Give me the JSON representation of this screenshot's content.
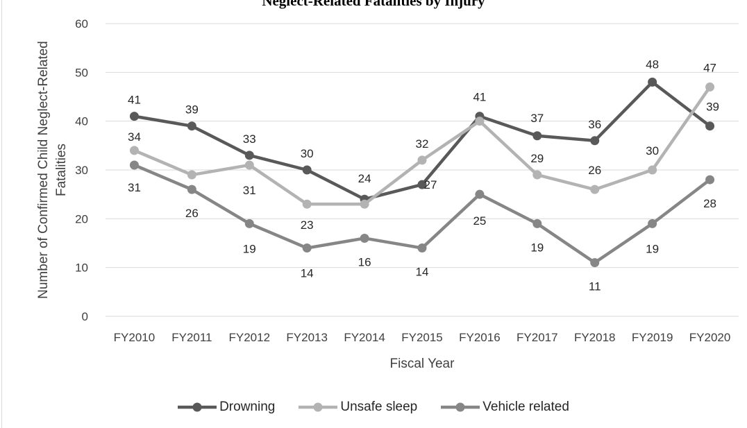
{
  "chart_data": {
    "type": "line",
    "title": "Neglect-Related Fatalities by Injury",
    "xlabel": "Fiscal Year",
    "ylabel": "Number of Confirmed Child Neglect-Related Fatalities",
    "ylim": [
      0,
      60
    ],
    "yticks": [
      0,
      10,
      20,
      30,
      40,
      50,
      60
    ],
    "grid": true,
    "legend_position": "bottom",
    "categories": [
      "FY2010",
      "FY2011",
      "FY2012",
      "FY2013",
      "FY2014",
      "FY2015",
      "FY2016",
      "FY2017",
      "FY2018",
      "FY2019",
      "FY2020"
    ],
    "series": [
      {
        "name": "Drowning",
        "color": "#595959",
        "values": [
          41,
          39,
          33,
          30,
          24,
          27,
          41,
          37,
          36,
          48,
          39
        ]
      },
      {
        "name": "Unsafe sleep",
        "color": "#b3b3b3",
        "values": [
          34,
          29,
          31,
          23,
          23,
          32,
          40,
          29,
          26,
          30,
          47
        ]
      },
      {
        "name": "Vehicle related",
        "color": "#868686",
        "values": [
          31,
          26,
          19,
          14,
          16,
          14,
          25,
          19,
          11,
          19,
          28
        ]
      }
    ]
  }
}
